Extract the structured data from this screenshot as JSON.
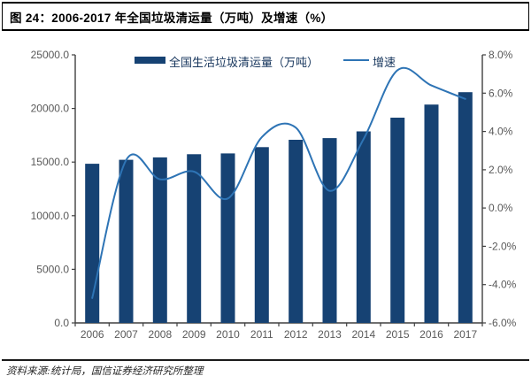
{
  "figure": {
    "title": "图 24：2006-2017 年全国垃圾清运量（万吨）及增速（%）",
    "source_note": "资料来源:统计局，国信证券经济研究所整理"
  },
  "chart_data": {
    "type": "combo-bar-line",
    "title": "2006-2017 年全国垃圾清运量（万吨）及增速（%）",
    "categories": [
      "2006",
      "2007",
      "2008",
      "2009",
      "2010",
      "2011",
      "2012",
      "2013",
      "2014",
      "2015",
      "2016",
      "2017"
    ],
    "series": [
      {
        "name": "全国生活垃圾清运量（万吨）",
        "type": "bar",
        "axis": "left",
        "values": [
          14841,
          15215,
          15438,
          15734,
          15805,
          16395,
          17081,
          17239,
          17860,
          19142,
          20362,
          21521
        ]
      },
      {
        "name": "增速",
        "type": "line",
        "axis": "right",
        "values": [
          -4.7,
          2.5,
          1.5,
          1.9,
          0.5,
          3.7,
          4.2,
          0.9,
          3.6,
          7.2,
          6.4,
          5.7
        ]
      }
    ],
    "left_axis": {
      "min": 0,
      "max": 25000,
      "step": 5000,
      "tick_labels": [
        "0.0",
        "5000.0",
        "10000.0",
        "15000.0",
        "20000.0",
        "25000.0"
      ]
    },
    "right_axis": {
      "min": -6,
      "max": 8,
      "step": 2,
      "tick_labels": [
        "-6.0%",
        "-4.0%",
        "-2.0%",
        "0.0%",
        "2.0%",
        "4.0%",
        "6.0%",
        "8.0%"
      ]
    },
    "legend_position": "top",
    "grid": false,
    "colors": {
      "bar": "#164273",
      "line": "#2E74B5",
      "axis": "#404040",
      "tick_label": "#595959",
      "legend_text": "#17365D"
    }
  }
}
